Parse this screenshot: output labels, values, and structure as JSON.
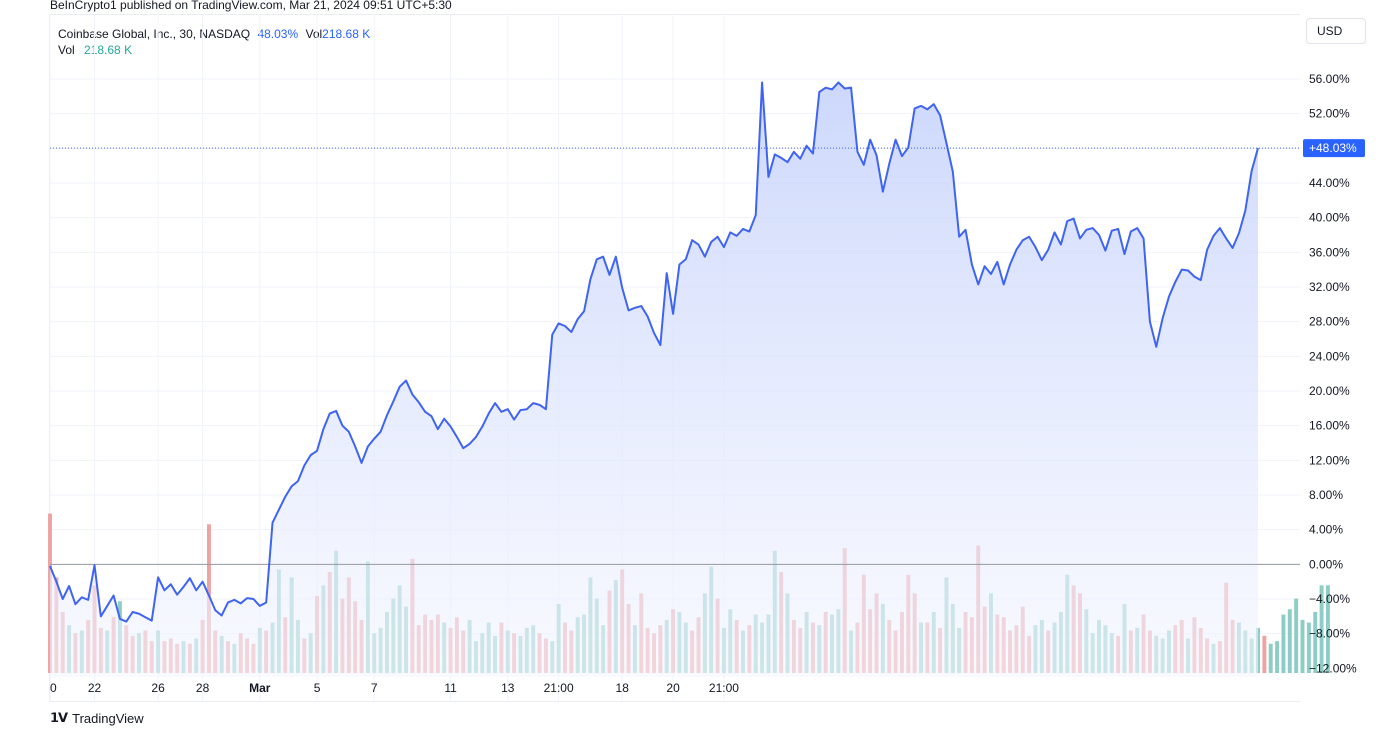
{
  "publisher_line": "BeInCrypto1 published on TradingView.com, Mar 21, 2024 09:51 UTC+5:30",
  "legend": {
    "symbol": "Coinbase Global, Inc., 30, NASDAQ",
    "change": "48.03%",
    "vol_key": "Vol",
    "vol_value": "218.68 K",
    "vol_row_label": "Vol",
    "vol_row_value": "218.68 K"
  },
  "currency_button": "USD",
  "last_value_label": "+48.03%",
  "footer_brand": "TradingView",
  "footer_icon": "tradingview-logo-icon",
  "colors": {
    "line": "#3f64f0",
    "area_top": "#c4d1fb",
    "area_bottom": "#f4f6ff",
    "volume_up": "#8ecdc5",
    "volume_down": "#eea3a3",
    "last_value_bg": "#2962ff"
  },
  "chart_data": {
    "type": "area",
    "title": "",
    "ylabel": "",
    "xlabel": "",
    "y_unit": "%",
    "ylim": [
      -13,
      57.5
    ],
    "y_ticks": [
      "56.00%",
      "52.00%",
      "48.00%",
      "44.00%",
      "40.00%",
      "36.00%",
      "32.00%",
      "28.00%",
      "24.00%",
      "20.00%",
      "16.00%",
      "12.00%",
      "8.00%",
      "4.00%",
      "0.00%",
      "−4.00%",
      "−8.00%",
      "−12.00%"
    ],
    "y_tick_values": [
      56,
      52,
      48,
      44,
      40,
      36,
      32,
      28,
      24,
      20,
      16,
      12,
      8,
      4,
      0,
      -4,
      -8,
      -12
    ],
    "x_tick_labels": [
      "0",
      "22",
      "26",
      "28",
      "Mar",
      "5",
      "7",
      "11",
      "13",
      "21:00",
      "18",
      "20",
      "21:00"
    ],
    "x_tick_index": [
      0,
      7,
      17,
      24,
      33,
      42,
      51,
      63,
      72,
      80,
      90,
      98,
      106
    ],
    "grid": true,
    "baseline": 0,
    "last_value": 48.03,
    "series": [
      {
        "name": "Coinbase Global, Inc., 30, NASDAQ",
        "values": [
          -0.2,
          -2.0,
          -4.0,
          -2.5,
          -4.6,
          -3.8,
          -4.1,
          -0.1,
          -6.0,
          -4.8,
          -3.6,
          -6.3,
          -6.6,
          -5.5,
          -5.7,
          -6.1,
          -6.5,
          -1.5,
          -3.0,
          -2.3,
          -3.5,
          -2.6,
          -1.6,
          -3.0,
          -2.0,
          -3.6,
          -5.3,
          -5.9,
          -4.4,
          -4.1,
          -4.5,
          -3.9,
          -4.0,
          -4.8,
          -4.4,
          4.8,
          6.3,
          7.8,
          9.0,
          9.6,
          11.4,
          12.6,
          13.1,
          15.6,
          17.4,
          17.7,
          16.0,
          15.3,
          13.6,
          11.7,
          13.6,
          14.5,
          15.3,
          17.2,
          18.8,
          20.5,
          21.2,
          19.6,
          18.7,
          17.6,
          17.1,
          15.6,
          16.8,
          15.9,
          14.7,
          13.4,
          13.9,
          14.7,
          15.9,
          17.4,
          18.6,
          17.6,
          17.9,
          16.7,
          17.8,
          17.9,
          18.6,
          18.4,
          17.9,
          26.5,
          27.8,
          27.5,
          26.8,
          28.3,
          29.2,
          32.9,
          35.2,
          35.5,
          33.4,
          35.5,
          31.9,
          29.3,
          29.6,
          29.8,
          28.6,
          26.7,
          25.3,
          33.6,
          28.9,
          34.6,
          35.2,
          37.4,
          36.9,
          35.5,
          37.2,
          37.8,
          36.6,
          38.3,
          37.9,
          38.7,
          38.4,
          40.3,
          55.6,
          44.7,
          47.3,
          46.9,
          46.4,
          47.6,
          46.8,
          48.3,
          47.4,
          54.5,
          55.0,
          54.8,
          55.6,
          54.9,
          55.0,
          47.6,
          46.1,
          49.0,
          47.2,
          43.0,
          46.2,
          49.0,
          47.1,
          48.1,
          52.6,
          52.9,
          52.5,
          53.1,
          51.8,
          48.6,
          45.3,
          37.8,
          38.6,
          34.6,
          32.3,
          34.4,
          33.5,
          34.9,
          32.3,
          34.6,
          36.3,
          37.4,
          37.8,
          36.6,
          35.1,
          36.3,
          38.3,
          36.9,
          39.6,
          39.9,
          37.6,
          38.6,
          38.8,
          38.0,
          36.2,
          38.5,
          38.7,
          35.8,
          38.4,
          38.8,
          37.6,
          28.0,
          25.1,
          28.4,
          30.9,
          32.6,
          34.0,
          33.9,
          33.2,
          32.8,
          36.3,
          37.9,
          38.8,
          37.6,
          36.5,
          38.2,
          40.8,
          45.4,
          48.03
        ]
      }
    ],
    "volume": {
      "label": "Vol",
      "unit": "K",
      "last": 218.68,
      "values": [
        600,
        360,
        230,
        180,
        150,
        160,
        200,
        330,
        170,
        160,
        210,
        270,
        180,
        140,
        150,
        160,
        120,
        160,
        120,
        130,
        110,
        120,
        110,
        130,
        200,
        560,
        160,
        140,
        120,
        110,
        150,
        130,
        110,
        170,
        160,
        190,
        390,
        210,
        360,
        200,
        130,
        150,
        290,
        330,
        380,
        460,
        280,
        360,
        270,
        200,
        420,
        150,
        170,
        230,
        280,
        330,
        250,
        430,
        180,
        220,
        200,
        220,
        190,
        170,
        210,
        160,
        200,
        120,
        150,
        190,
        140,
        190,
        160,
        150,
        140,
        170,
        180,
        150,
        130,
        120,
        260,
        190,
        160,
        210,
        220,
        360,
        280,
        180,
        310,
        350,
        390,
        260,
        180,
        300,
        170,
        150,
        180,
        200,
        240,
        230,
        190,
        160,
        210,
        300,
        400,
        280,
        170,
        240,
        200,
        160,
        180,
        220,
        190,
        220,
        460,
        380,
        300,
        200,
        170,
        230,
        190,
        180,
        230,
        220,
        240,
        470,
        160,
        190,
        370,
        240,
        300,
        260,
        200,
        160,
        230,
        370,
        300,
        190,
        190,
        230,
        170,
        360,
        260,
        170,
        230,
        210,
        480,
        250,
        300,
        220,
        210,
        160,
        180,
        250,
        140,
        180,
        200,
        160,
        190,
        230,
        370,
        330,
        300,
        240,
        150,
        200,
        180,
        150,
        140,
        260,
        160,
        170,
        220,
        160,
        140,
        130,
        160,
        180,
        200,
        130,
        210,
        170,
        130,
        110,
        120,
        340,
        200,
        190,
        160,
        130,
        170,
        140,
        110,
        120,
        220,
        240,
        280,
        200,
        190,
        230,
        330,
        330
      ],
      "down_flags": [
        1,
        1,
        1,
        0,
        1,
        0,
        1,
        1,
        1,
        0,
        1,
        0,
        1,
        1,
        0,
        1,
        1,
        0,
        1,
        1,
        1,
        0,
        1,
        0,
        1,
        1,
        1,
        0,
        1,
        0,
        1,
        1,
        1,
        0,
        1,
        0,
        0,
        1,
        0,
        0,
        1,
        0,
        1,
        0,
        1,
        0,
        1,
        1,
        1,
        1,
        0,
        0,
        0,
        0,
        0,
        0,
        0,
        1,
        1,
        1,
        1,
        1,
        0,
        1,
        1,
        1,
        0,
        0,
        0,
        0,
        0,
        1,
        0,
        1,
        0,
        0,
        0,
        1,
        1,
        0,
        0,
        1,
        1,
        0,
        0,
        0,
        0,
        0,
        1,
        0,
        1,
        1,
        0,
        1,
        1,
        1,
        1,
        0,
        1,
        0,
        0,
        1,
        1,
        0,
        0,
        1,
        0,
        0,
        1,
        0,
        1,
        0,
        0,
        0,
        0,
        1,
        0,
        1,
        1,
        0,
        1,
        0,
        1,
        0,
        0,
        1,
        0,
        1,
        1,
        1,
        1,
        0,
        1,
        1,
        1,
        1,
        1,
        0,
        1,
        0,
        1,
        0,
        0,
        0,
        1,
        1,
        1,
        1,
        0,
        1,
        1,
        1,
        1,
        1,
        1,
        0,
        0,
        1,
        0,
        0,
        0,
        1,
        1,
        0,
        0,
        0,
        0,
        0,
        1,
        0,
        1,
        0,
        1,
        1,
        0,
        0,
        0,
        1,
        1,
        0,
        1,
        1,
        1,
        0,
        1,
        1,
        1,
        0,
        0,
        0,
        0,
        1,
        0,
        0,
        0,
        0,
        0,
        0,
        0,
        0,
        0,
        0
      ]
    }
  }
}
